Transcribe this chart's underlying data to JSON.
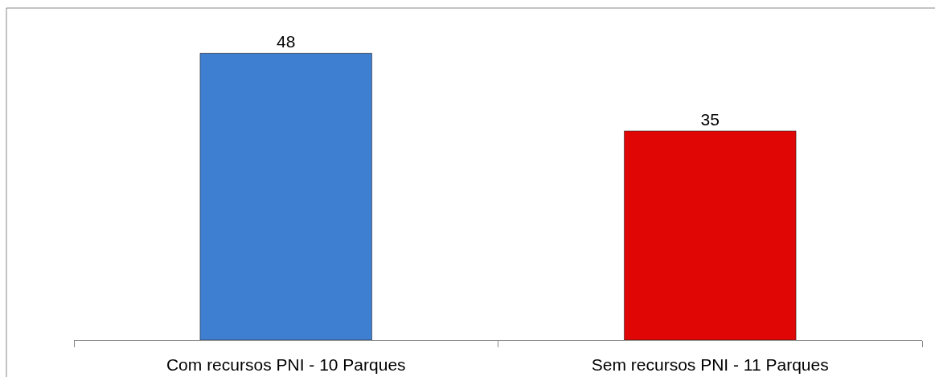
{
  "chart_data": {
    "type": "bar",
    "categories": [
      "Com recursos PNI - 10 Parques",
      "Sem recursos PNI - 11 Parques"
    ],
    "values": [
      48,
      35
    ],
    "colors": [
      "#3f7fd2",
      "#e00606"
    ],
    "data_labels": true,
    "tick_labels": "x"
  }
}
